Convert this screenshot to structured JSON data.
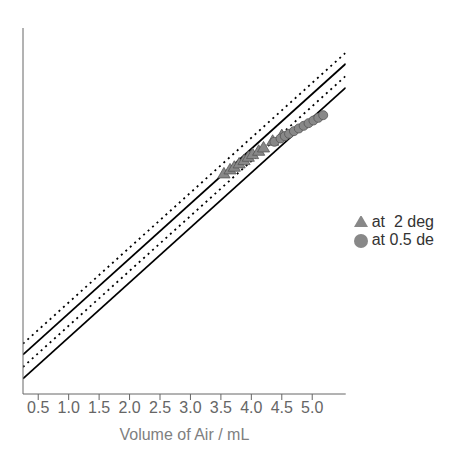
{
  "chart_data": {
    "type": "scatter",
    "xlabel": "Volume of Air / mL",
    "xlim": [
      0.25,
      5.55
    ],
    "ylim": [
      0.0,
      1.1
    ],
    "xticks": [
      0.5,
      {
        "value": 1.0,
        "label": "1.0"
      },
      1.5,
      {
        "value": 2.0,
        "label": "2.0"
      },
      2.5,
      {
        "value": 3.0,
        "label": "3.0"
      },
      3.5,
      {
        "value": 4.0,
        "label": "4.0"
      },
      4.5,
      {
        "value": 5.0,
        "label": "5.0"
      }
    ],
    "tick_labels": "x",
    "grid": false,
    "legend": "right",
    "series": [
      {
        "type": "line",
        "line_style": "solid",
        "color": "#000000",
        "x": [
          0.25,
          5.55
        ],
        "values": [
          0.11825,
          0.99275
        ]
      },
      {
        "type": "line",
        "line_style": "solid",
        "color": "#000000",
        "x": [
          0.25,
          5.55
        ],
        "values": [
          0.04625,
          0.92075
        ]
      },
      {
        "type": "line",
        "line_style": "dotted",
        "color": "#000000",
        "x": [
          0.25,
          5.55
        ],
        "values": [
          0.15125,
          1.02575
        ]
      },
      {
        "type": "line",
        "line_style": "dotted",
        "color": "#000000",
        "x": [
          0.25,
          5.55
        ],
        "values": [
          0.08125,
          0.95575
        ]
      },
      {
        "type": "scatter",
        "name": "at  2 deg",
        "marker": "triangle",
        "color": "#888888",
        "x": [
          3.55,
          3.65,
          3.72,
          3.8,
          3.88,
          3.95,
          4.02,
          4.12,
          4.2,
          4.35,
          4.5
        ],
        "values": [
          0.66,
          0.672,
          0.68,
          0.69,
          0.7,
          0.71,
          0.718,
          0.728,
          0.738,
          0.758,
          0.775
        ]
      },
      {
        "type": "scatter",
        "name": "at 0.5 de",
        "marker": "circle",
        "color": "#888888",
        "x": [
          4.38,
          4.48,
          4.55,
          4.62,
          4.7,
          4.78,
          4.86,
          4.94,
          5.02,
          5.1,
          5.18
        ],
        "values": [
          0.758,
          0.768,
          0.775,
          0.782,
          0.79,
          0.798,
          0.806,
          0.814,
          0.822,
          0.83,
          0.838
        ]
      }
    ]
  }
}
